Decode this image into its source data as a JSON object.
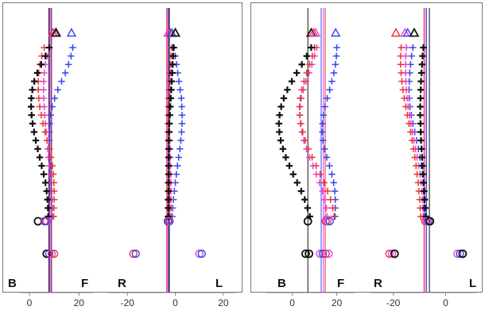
{
  "chart_data": {
    "type": "scatter",
    "colors": {
      "black": "#111111",
      "red": "#ee3333",
      "magenta": "#e040e0",
      "blue": "#3344ee"
    },
    "panels": [
      {
        "group": 1,
        "corner_left": "B",
        "corner_right": "F",
        "xlim": [
          -3.5,
          26
        ],
        "xticks": [
          0,
          20
        ],
        "xtick_labels": [
          "0",
          "20"
        ],
        "ref_lines": [
          {
            "color": "blue",
            "x": 8.7
          },
          {
            "color": "magenta",
            "x": 8.2
          },
          {
            "color": "black",
            "x": 7.9
          },
          {
            "color": "red",
            "x": 9.0
          }
        ],
        "profiles": [
          {
            "color": "blue",
            "x": [
              17.5,
              16.8,
              15.8,
              14.5,
              13.0,
              11.5,
              10.2,
              9.2,
              8.6,
              8.2,
              8.0,
              8.0,
              8.1,
              8.2,
              8.4,
              8.6,
              8.8,
              9.0,
              9.1,
              9.2,
              9.2
            ]
          },
          {
            "color": "magenta",
            "x": [
              8.0,
              7.2,
              6.5,
              6.0,
              5.8,
              5.7,
              5.8,
              6.0,
              6.2,
              6.5,
              6.8,
              7.1,
              7.4,
              7.7,
              8.0,
              8.2,
              8.4,
              8.6,
              8.7,
              8.8,
              8.8
            ]
          },
          {
            "color": "red",
            "x": [
              6.0,
              5.0,
              4.3,
              3.8,
              3.6,
              3.6,
              3.8,
              4.2,
              4.8,
              5.5,
              6.3,
              7.2,
              8.0,
              8.7,
              9.3,
              9.7,
              9.9,
              10.0,
              10.0,
              9.9,
              9.8
            ]
          },
          {
            "color": "black",
            "x": [
              8.0,
              6.5,
              4.8,
              3.2,
              2.0,
              1.2,
              0.8,
              0.7,
              0.9,
              1.3,
              1.9,
              2.6,
              3.4,
              4.2,
              5.0,
              5.8,
              6.5,
              7.0,
              7.3,
              7.5,
              7.6
            ]
          }
        ],
        "top_markers": [
          {
            "color": "blue",
            "x": 17.0
          },
          {
            "color": "red",
            "x": 9.5
          },
          {
            "color": "magenta",
            "x": 10.3
          },
          {
            "color": "black",
            "x": 10.8
          }
        ],
        "bottom_circles": [
          {
            "color": "black",
            "x": 3.5,
            "level": "upper"
          },
          {
            "color": "red",
            "x": 6.0,
            "level": "upper"
          },
          {
            "color": "magenta",
            "x": 7.0,
            "level": "upper"
          },
          {
            "color": "blue",
            "x": 6.5,
            "level": "upper"
          },
          {
            "color": "black",
            "x": 7.0,
            "level": "lower"
          },
          {
            "color": "blue",
            "x": 8.0,
            "level": "lower"
          },
          {
            "color": "magenta",
            "x": 9.0,
            "level": "lower"
          },
          {
            "color": "red",
            "x": 10.0,
            "level": "lower"
          }
        ]
      },
      {
        "group": 1,
        "corner_left": "R",
        "corner_right": "L",
        "xlim": [
          -28,
          25
        ],
        "xticks": [
          -20,
          0,
          20
        ],
        "xtick_labels": [
          "-20",
          "0",
          "20"
        ],
        "ref_lines": [
          {
            "color": "blue",
            "x": -2.8
          },
          {
            "color": "magenta",
            "x": -3.2
          },
          {
            "color": "black",
            "x": -2.5
          },
          {
            "color": "red",
            "x": -3.6
          }
        ],
        "profiles": [
          {
            "color": "blue",
            "x": [
              -0.5,
              0.0,
              0.5,
              1.0,
              1.5,
              2.0,
              2.5,
              2.7,
              2.8,
              2.8,
              2.6,
              2.3,
              1.9,
              1.4,
              0.9,
              0.4,
              0.0,
              -0.4,
              -0.8,
              -1.1,
              -1.3
            ]
          },
          {
            "color": "magenta",
            "x": [
              -1.0,
              -1.2,
              -1.5,
              -1.7,
              -1.9,
              -2.0,
              -2.1,
              -2.2,
              -2.3,
              -2.4,
              -2.4,
              -2.3,
              -2.2,
              -2.1,
              -2.0,
              -1.9,
              -1.8,
              -1.8,
              -1.8,
              -1.8,
              -1.8
            ]
          },
          {
            "color": "red",
            "x": [
              -1.5,
              -1.8,
              -2.0,
              -2.2,
              -2.4,
              -2.6,
              -2.8,
              -2.9,
              -3.0,
              -3.0,
              -3.0,
              -2.9,
              -2.8,
              -2.7,
              -2.6,
              -2.5,
              -2.4,
              -2.3,
              -2.3,
              -2.3,
              -2.3
            ]
          },
          {
            "color": "black",
            "x": [
              -0.8,
              -0.9,
              -1.1,
              -1.3,
              -1.5,
              -1.7,
              -1.9,
              -2.1,
              -2.3,
              -2.5,
              -2.6,
              -2.7,
              -2.7,
              -2.8,
              -2.8,
              -2.8,
              -2.9,
              -2.9,
              -3.0,
              -3.0,
              -3.0
            ]
          }
        ],
        "top_markers": [
          {
            "color": "magenta",
            "x": -3.0
          },
          {
            "color": "red",
            "x": -2.2
          },
          {
            "color": "blue",
            "x": -1.5
          },
          {
            "color": "black",
            "x": 0.0
          }
        ],
        "bottom_circles": [
          {
            "color": "black",
            "x": -3.0,
            "level": "upper"
          },
          {
            "color": "blue",
            "x": -2.4,
            "level": "upper"
          },
          {
            "color": "magenta",
            "x": -2.8,
            "level": "upper"
          },
          {
            "color": "red",
            "x": -17.5,
            "level": "lower"
          },
          {
            "color": "blue",
            "x": -16.5,
            "level": "lower"
          },
          {
            "color": "magenta",
            "x": 10.0,
            "level": "lower"
          },
          {
            "color": "blue",
            "x": 11.0,
            "level": "lower"
          }
        ]
      },
      {
        "group": 2,
        "corner_left": "B",
        "corner_right": "F",
        "xlim": [
          -12,
          28
        ],
        "xticks": [
          0,
          20
        ],
        "xtick_labels": [
          "0",
          "20"
        ],
        "ref_lines": [
          {
            "color": "black",
            "x": 7.0
          },
          {
            "color": "blue",
            "x": 13.0
          },
          {
            "color": "magenta",
            "x": 14.0
          },
          {
            "color": "red",
            "x": 14.8
          }
        ],
        "profiles": [
          {
            "color": "blue",
            "x": [
              20.0,
              19.8,
              19.4,
              18.7,
              17.8,
              16.8,
              15.7,
              14.7,
              14.0,
              13.6,
              13.5,
              13.8,
              14.5,
              15.5,
              16.7,
              17.8,
              18.6,
              19.1,
              19.3,
              19.3,
              19.2
            ]
          },
          {
            "color": "magenta",
            "x": [
              11.0,
              10.0,
              8.8,
              7.5,
              6.2,
              5.0,
              4.0,
              3.5,
              3.4,
              3.7,
              4.3,
              5.2,
              6.4,
              7.8,
              9.3,
              10.8,
              12.3,
              13.6,
              14.6,
              15.3,
              15.6
            ]
          },
          {
            "color": "red",
            "x": [
              10.0,
              9.0,
              7.8,
              6.5,
              5.3,
              4.3,
              3.6,
              3.3,
              3.4,
              3.9,
              4.7,
              5.8,
              7.2,
              8.9,
              10.7,
              12.5,
              14.3,
              15.9,
              17.2,
              18.2,
              18.8
            ]
          },
          {
            "color": "black",
            "x": [
              8.5,
              6.5,
              4.3,
              2.0,
              -0.2,
              -2.2,
              -3.8,
              -5.0,
              -5.7,
              -6.0,
              -5.8,
              -5.2,
              -4.2,
              -2.9,
              -1.3,
              0.4,
              2.2,
              4.0,
              5.6,
              6.9,
              7.9
            ]
          }
        ],
        "top_markers": [
          {
            "color": "black",
            "x": 8.5
          },
          {
            "color": "red",
            "x": 9.5
          },
          {
            "color": "magenta",
            "x": 10.5
          },
          {
            "color": "blue",
            "x": 19.5
          }
        ],
        "bottom_circles": [
          {
            "color": "black",
            "x": 7.0,
            "level": "upper"
          },
          {
            "color": "red",
            "x": 15.0,
            "level": "upper"
          },
          {
            "color": "magenta",
            "x": 15.8,
            "level": "upper"
          },
          {
            "color": "blue",
            "x": 16.8,
            "level": "upper"
          },
          {
            "color": "black",
            "x": 6.0,
            "level": "lower"
          },
          {
            "color": "black",
            "x": 7.5,
            "level": "lower"
          },
          {
            "color": "magenta",
            "x": 12.5,
            "level": "lower"
          },
          {
            "color": "blue",
            "x": 13.7,
            "level": "lower"
          },
          {
            "color": "red",
            "x": 15.0,
            "level": "lower"
          },
          {
            "color": "magenta",
            "x": 16.3,
            "level": "lower"
          }
        ]
      },
      {
        "group": 2,
        "corner_left": "R",
        "corner_right": "L",
        "xlim": [
          -29,
          12
        ],
        "xticks": [
          -20,
          0
        ],
        "xtick_labels": [
          "-20",
          "0"
        ],
        "ref_lines": [
          {
            "color": "black",
            "x": -6.2
          },
          {
            "color": "blue",
            "x": -7.3
          },
          {
            "color": "magenta",
            "x": -7.8
          },
          {
            "color": "red",
            "x": -8.3
          }
        ],
        "profiles": [
          {
            "color": "blue",
            "x": [
              -12.5,
              -13.0,
              -13.4,
              -13.7,
              -13.9,
              -14.0,
              -13.9,
              -13.6,
              -13.1,
              -12.5,
              -11.8,
              -11.1,
              -10.4,
              -9.8,
              -9.3,
              -8.9,
              -8.6,
              -8.4,
              -8.3,
              -8.3,
              -8.3
            ]
          },
          {
            "color": "magenta",
            "x": [
              -15.0,
              -15.2,
              -15.3,
              -15.3,
              -15.2,
              -15.0,
              -14.7,
              -14.3,
              -13.8,
              -13.3,
              -12.7,
              -12.1,
              -11.5,
              -10.9,
              -10.3,
              -9.8,
              -9.4,
              -9.1,
              -8.9,
              -8.7,
              -8.6
            ]
          },
          {
            "color": "red",
            "x": [
              -17.0,
              -17.2,
              -17.2,
              -17.0,
              -16.7,
              -16.3,
              -15.8,
              -15.2,
              -14.6,
              -14.0,
              -13.4,
              -12.8,
              -12.3,
              -11.8,
              -11.3,
              -10.9,
              -10.5,
              -10.2,
              -9.9,
              -9.7,
              -9.5
            ]
          },
          {
            "color": "black",
            "x": [
              -8.5,
              -8.8,
              -9.0,
              -9.2,
              -9.4,
              -9.5,
              -9.6,
              -9.7,
              -9.7,
              -9.6,
              -9.5,
              -9.4,
              -9.2,
              -9.0,
              -8.8,
              -8.6,
              -8.4,
              -8.2,
              -8.0,
              -7.8,
              -7.6
            ]
          }
        ],
        "top_markers": [
          {
            "color": "red",
            "x": -19.0
          },
          {
            "color": "magenta",
            "x": -15.5
          },
          {
            "color": "blue",
            "x": -14.5
          },
          {
            "color": "black",
            "x": -12.0
          }
        ],
        "bottom_circles": [
          {
            "color": "red",
            "x": -7.8,
            "level": "upper"
          },
          {
            "color": "magenta",
            "x": -7.2,
            "level": "upper"
          },
          {
            "color": "blue",
            "x": -6.6,
            "level": "upper"
          },
          {
            "color": "black",
            "x": -6.0,
            "level": "upper"
          },
          {
            "color": "red",
            "x": -21.5,
            "level": "lower"
          },
          {
            "color": "magenta",
            "x": -20.5,
            "level": "lower"
          },
          {
            "color": "black",
            "x": -19.5,
            "level": "lower"
          },
          {
            "color": "magenta",
            "x": 4.5,
            "level": "lower"
          },
          {
            "color": "blue",
            "x": 5.5,
            "level": "lower"
          },
          {
            "color": "black",
            "x": 6.5,
            "level": "lower"
          }
        ]
      }
    ]
  }
}
